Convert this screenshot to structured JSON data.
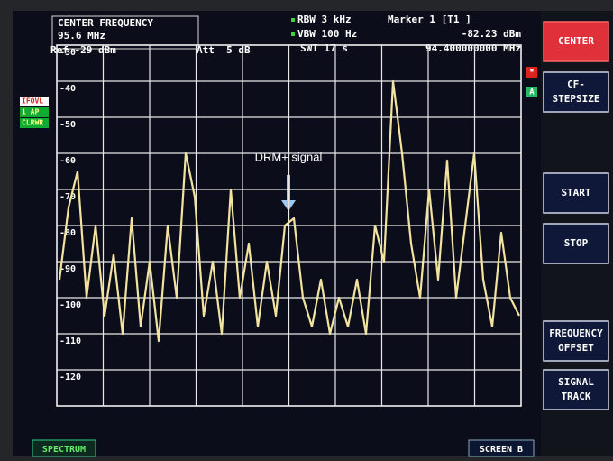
{
  "header": {
    "center_label": "CENTER FREQUENCY",
    "center_value": "95.6 MHz",
    "ref": "Ref -29 dBm",
    "att": "Att  5 dB",
    "rbw": "RBW 3 kHz",
    "vbw": "VBW 100 Hz",
    "swt": "SWT 17 s",
    "marker": "Marker 1 [T1 ]",
    "marker_level": "-82.23 dBm",
    "marker_freq": "94.400000000 MHz"
  },
  "indicators": [
    "IFOVL",
    "1 AP",
    "CLRWR"
  ],
  "trace_flags": [
    "*",
    "A"
  ],
  "annotation": "DRM+ signal",
  "softkeys": [
    [
      "CENTER"
    ],
    [
      "CF-",
      "STEPSIZE"
    ],
    [
      "START"
    ],
    [
      "STOP"
    ],
    [
      "FREQUENCY",
      "OFFSET"
    ],
    [
      "SIGNAL",
      "TRACK"
    ]
  ],
  "footer": {
    "mode": "SPECTRUM",
    "screen": "SCREEN B"
  },
  "chart_data": {
    "type": "line",
    "color": "#f3e3a0",
    "grid": true,
    "ylim": [
      -30,
      -130
    ],
    "yticks": [
      -30,
      -40,
      -50,
      -60,
      -70,
      -80,
      -90,
      -100,
      -110,
      -120
    ],
    "values": [
      -95,
      -75,
      -65,
      -100,
      -80,
      -105,
      -88,
      -110,
      -78,
      -108,
      -90,
      -112,
      -80,
      -100,
      -60,
      -72,
      -105,
      -90,
      -110,
      -70,
      -100,
      -85,
      -108,
      -90,
      -105,
      -80,
      -78,
      -100,
      -108,
      -95,
      -110,
      -100,
      -108,
      -95,
      -110,
      -80,
      -90,
      -40,
      -60,
      -85,
      -100,
      -70,
      -95,
      -62,
      -100,
      -80,
      -60,
      -95,
      -108,
      -82,
      -100,
      -105
    ]
  }
}
